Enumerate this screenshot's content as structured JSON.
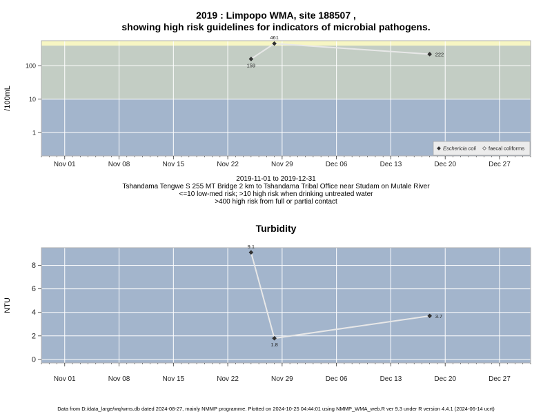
{
  "page": {
    "title_line1": "2019 : Limpopo WMA, site 188507 ,",
    "title_line2": "showing high risk guidelines for indicators of microbial pathogens.",
    "caption_line1": "2019-11-01 to 2019-12-31",
    "caption_line2": "Tshandama Tengwe S 255 MT Bridge 2 km to Tshandama Tribal Office near Studam on Mutale River",
    "caption_line3": "<=10 low-med risk; >10 high risk when drinking untreated water",
    "caption_line4": ">400 high risk from full or partial contact",
    "turbidity_title": "Turbidity",
    "footer": "Data from D:/data_large/wq/wms.db dated 2024-08-27, mainly NMMP programme. Plotted on 2024-10-25 04:44:01 using NMMP_WMA_web.R ver 9.3 under R version 4.4.1 (2024-06-14 ucrt)"
  },
  "colors": {
    "band_low": "#a3b5cc",
    "band_mid": "#c3cdc4",
    "band_high": "#f7f6c3",
    "line": "#e8e8e8",
    "point": "#333333"
  },
  "chart_data": [
    {
      "type": "line",
      "title": "",
      "ylabel": "/100mL",
      "yscale": "log",
      "x_range": [
        "2019-10-29",
        "2019-12-31"
      ],
      "y_range": [
        0.2,
        560
      ],
      "ticks_y": [
        1,
        10,
        100
      ],
      "tick_labels_y": [
        "1",
        "10",
        "100"
      ],
      "ticks_x": [
        "2019-11-01",
        "2019-11-08",
        "2019-11-15",
        "2019-11-22",
        "2019-11-29",
        "2019-12-06",
        "2019-12-13",
        "2019-12-20",
        "2019-12-27"
      ],
      "tick_labels_x": [
        "Nov 01",
        "Nov 08",
        "Nov 15",
        "Nov 22",
        "Nov 29",
        "Dec 06",
        "Dec 13",
        "Dec 20",
        "Dec 27"
      ],
      "bands": [
        {
          "from": 0.2,
          "to": 10,
          "color": "#a3b5cc"
        },
        {
          "from": 10,
          "to": 400,
          "color": "#c3cdc4"
        },
        {
          "from": 400,
          "to": 560,
          "color": "#f7f6c3"
        }
      ],
      "series": [
        {
          "name": "Eschericia coli",
          "x": [
            "2019-11-25",
            "2019-11-28",
            "2019-12-18"
          ],
          "y": [
            159,
            461,
            222
          ],
          "labels": [
            "159",
            "461",
            "222"
          ],
          "label_pos": [
            "below",
            "above",
            "right"
          ]
        }
      ],
      "legend": {
        "position": "bottom-right",
        "entries": [
          {
            "label": "Eschericia coli",
            "marker": "filled-diamond"
          },
          {
            "label": "faecal coliforms",
            "marker": "open-diamond"
          }
        ]
      }
    },
    {
      "type": "line",
      "title": "Turbidity",
      "ylabel": "NTU",
      "yscale": "linear",
      "x_range": [
        "2019-10-29",
        "2019-12-31"
      ],
      "y_range": [
        -0.3,
        9.5
      ],
      "ticks_y": [
        0,
        2,
        4,
        6,
        8
      ],
      "tick_labels_y": [
        "0",
        "2",
        "4",
        "6",
        "8"
      ],
      "ticks_x": [
        "2019-11-01",
        "2019-11-08",
        "2019-11-15",
        "2019-11-22",
        "2019-11-29",
        "2019-12-06",
        "2019-12-13",
        "2019-12-20",
        "2019-12-27"
      ],
      "tick_labels_x": [
        "Nov 01",
        "Nov 08",
        "Nov 15",
        "Nov 22",
        "Nov 29",
        "Dec 06",
        "Dec 13",
        "Dec 20",
        "Dec 27"
      ],
      "bands": [
        {
          "from": -0.3,
          "to": 9.5,
          "color": "#a3b5cc"
        }
      ],
      "series": [
        {
          "x": [
            "2019-11-25",
            "2019-11-28",
            "2019-12-18"
          ],
          "y": [
            9.1,
            1.8,
            3.7
          ],
          "labels": [
            "9.1",
            "1.8",
            "3.7"
          ],
          "label_pos": [
            "above",
            "below",
            "right"
          ]
        }
      ]
    }
  ]
}
